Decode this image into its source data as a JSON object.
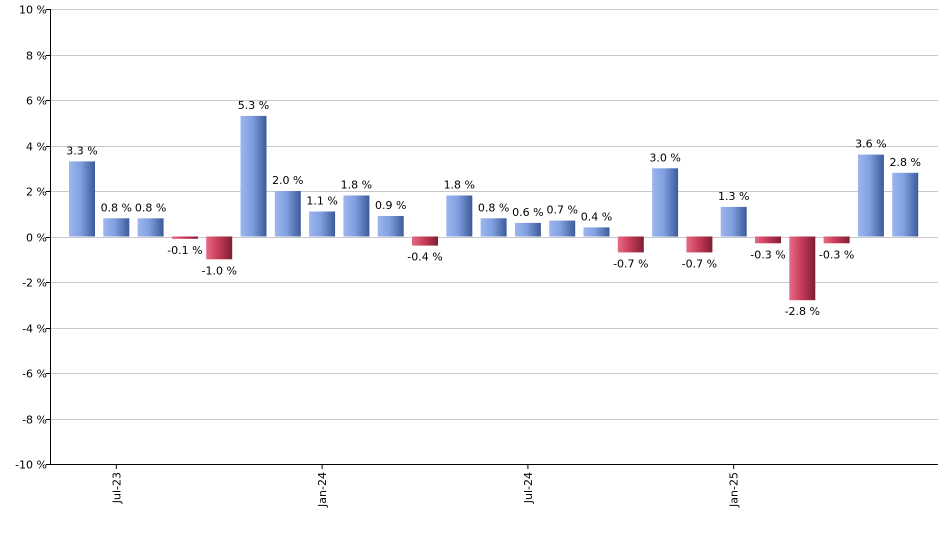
{
  "chart_data": {
    "type": "bar",
    "title": "",
    "xlabel": "",
    "ylabel": "",
    "ylim": [
      -10,
      10
    ],
    "yticks": [
      10,
      8,
      6,
      4,
      2,
      0,
      -2,
      -4,
      -6,
      -8,
      -10
    ],
    "ytick_labels": [
      "10 %",
      "8 %",
      "6 %",
      "4 %",
      "2 %",
      "0 %",
      "-2 %",
      "-4 %",
      "-6 %",
      "-8 %",
      "-10 %"
    ],
    "grid": true,
    "positive_color": "#6f8fd0",
    "negative_color": "#c23a56",
    "xticks": [
      {
        "label": "Jul-23",
        "index": 1
      },
      {
        "label": "Jan-24",
        "index": 7
      },
      {
        "label": "Jul-24",
        "index": 13
      },
      {
        "label": "Jan-25",
        "index": 19
      }
    ],
    "values": [
      3.3,
      0.8,
      0.8,
      -0.1,
      -1.0,
      5.3,
      2.0,
      1.1,
      1.8,
      0.9,
      -0.4,
      1.8,
      0.8,
      0.6,
      0.7,
      0.4,
      -0.7,
      3.0,
      -0.7,
      1.3,
      -0.3,
      -2.8,
      -0.3,
      3.6,
      2.8
    ],
    "value_labels": [
      "3.3 %",
      "0.8 %",
      "0.8 %",
      "-0.1 %",
      "-1.0 %",
      "5.3 %",
      "2.0 %",
      "1.1 %",
      "1.8 %",
      "0.9 %",
      "-0.4 %",
      "1.8 %",
      "0.8 %",
      "0.6 %",
      "0.7 %",
      "0.4 %",
      "-0.7 %",
      "3.0 %",
      "-0.7 %",
      "1.3 %",
      "-0.3 %",
      "-2.8 %",
      "-0.3 %",
      "3.6 %",
      "2.8 %"
    ]
  }
}
